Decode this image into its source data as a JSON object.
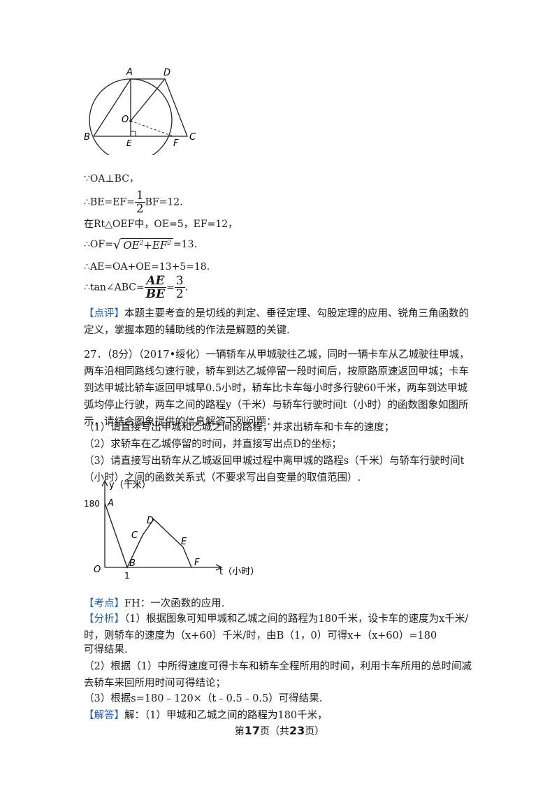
{
  "circle_figure": {
    "labels": {
      "A": "A",
      "D": "D",
      "O": "O",
      "B": "B",
      "E": "E",
      "F": "F",
      "C": "C"
    }
  },
  "solution_lines": {
    "l1": "∵OA⊥BC，",
    "l2_pre": "∴BE=EF=",
    "l2_num": "1",
    "l2_den": "2",
    "l2_post": "BF=12.",
    "l3": "在Rt△OEF中，OE=5，EF=12，",
    "l4_pre": "∴OF=",
    "l4_rad_a": "OE",
    "l4_rad_plus": "+",
    "l4_rad_b": "EF",
    "l4_exp": "2",
    "l4_post": "=13.",
    "l5": "∴AE=OA+OE=13+5=18.",
    "l6_pre": "∴tan∠ABC=",
    "l6_num": "AE",
    "l6_den": "BE",
    "l6_eq": "=",
    "l6_num2": "3",
    "l6_den2": "2",
    "l6_post": "."
  },
  "comment": {
    "tag": "【点评】",
    "text": "本题主要考查的是切线的判定、垂径定理、勾股定理的应用、锐角三角函数的定义，掌握本题的辅助线的作法是解题的关键."
  },
  "question": {
    "text": "27．（8分）（2017•绥化）一辆轿车从甲城驶往乙城，同时一辆卡车从乙城驶往甲城，两车沿相同路线匀速行驶，轿车到达乙城停留一段时间后，按原路原速返回甲城；卡车到达甲城比轿车返回甲城早0.5小时，轿车比卡车每小时多行驶60千米，两车到达甲城弧均停止行驶，两车之间的路程y（千米）与轿车行驶时间t（小时）的函数图象如图所示，请结合图象提供的信息解答下列问题：",
    "q1": "（1）请直接写出甲城和乙城之间的路程，并求出轿车和卡车的速度；",
    "q2": "（2）求轿车在乙城停留的时间，并直接写出点D的坐标；",
    "q3": "（3）请直接写出轿车从乙城返回甲城过程中离甲城的路程s（千米）与轿车行驶时间t（小时）之间的函数关系式（不要求写出自变量的取值范围）."
  },
  "graph": {
    "y_label": "y（千米）",
    "t_label": "t（小时）",
    "origin": "O",
    "y_tick": "180",
    "x_tick": "1",
    "points": {
      "A": "A",
      "B": "B",
      "C": "C",
      "D": "D",
      "E": "E",
      "F": "F"
    }
  },
  "analysis": {
    "kaodian_tag": "【考点】",
    "kaodian": "FH：一次函数的应用.",
    "fenxi_tag": "【分析】",
    "fenxi1": "（1）根据图象可知甲城和乙城之间的路程为180千米，设卡车的速度为x千米/时，则轿车的速度为（x+60）千米/时，由B（1，0）可得x+（x+60）=180",
    "fenxi1b": "可得结果.",
    "fenxi2": "（2）根据（1）中所得速度可得卡车和轿车全程所用的时间，利用卡车所用的总时间减去轿车来回所用时间可得结论；",
    "fenxi3": "（3）根据s=180﹣120×（t﹣0.5﹣0.5）可得结果.",
    "jieda_tag": "【解答】",
    "jieda": "解：（1）甲城和乙城之间的路程为180千米，"
  },
  "footer": {
    "p1": "第",
    "page": "17",
    "p2": "页（共",
    "total": "23",
    "p3": "页）"
  }
}
